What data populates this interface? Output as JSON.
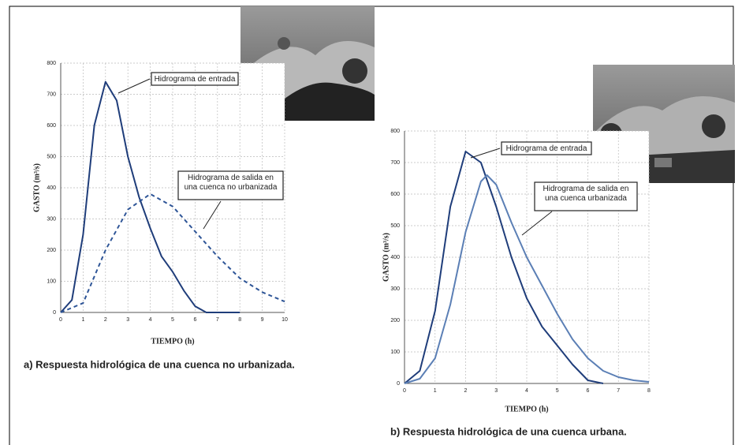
{
  "chart_data": [
    {
      "type": "line",
      "caption": "a) Respuesta hidrológica de una cuenca no urbanizada.",
      "x_label": "TIEMPO (h)",
      "y_label": "GASTO (m³/s)",
      "xlim": [
        0,
        10
      ],
      "xticks": [
        0,
        1,
        2,
        3,
        4,
        5,
        6,
        7,
        8,
        9,
        10
      ],
      "ylim": [
        0,
        800
      ],
      "yticks": [
        0,
        100,
        200,
        300,
        400,
        500,
        600,
        700,
        800
      ],
      "grid": true,
      "series": [
        {
          "color": "#1f3d7a",
          "dashed": false,
          "x": [
            0,
            0.5,
            1,
            1.5,
            2,
            2.5,
            3,
            3.5,
            4,
            4.5,
            5,
            5.5,
            6,
            6.5,
            7,
            8
          ],
          "values": [
            0,
            40,
            250,
            600,
            740,
            680,
            500,
            370,
            270,
            180,
            130,
            70,
            20,
            0,
            0,
            0
          ]
        },
        {
          "color": "#2e5597",
          "dashed": true,
          "x": [
            0,
            1,
            2,
            3,
            4,
            5,
            6,
            7,
            8,
            9,
            10
          ],
          "values": [
            0,
            30,
            200,
            330,
            380,
            340,
            260,
            180,
            110,
            65,
            35
          ]
        }
      ],
      "annotations": [
        {
          "lines": [
            "Hidrograma de entrada"
          ]
        },
        {
          "lines": [
            "Hidrograma de salida en",
            "una cuenca no urbanizada"
          ]
        }
      ]
    },
    {
      "type": "line",
      "caption": "b) Respuesta hidrológica de una cuenca urbana.",
      "x_label": "TIEMPO (h)",
      "y_label": "GASTO (m³/s)",
      "xlim": [
        0,
        8
      ],
      "xticks": [
        0,
        1,
        2,
        3,
        4,
        5,
        6,
        7,
        8
      ],
      "ylim": [
        0,
        800
      ],
      "yticks": [
        0,
        100,
        200,
        300,
        400,
        500,
        600,
        700,
        800
      ],
      "grid": true,
      "series": [
        {
          "color": "#1f3d7a",
          "dashed": false,
          "x": [
            0,
            0.5,
            1,
            1.5,
            2,
            2.5,
            3,
            3.5,
            4,
            4.5,
            5,
            5.5,
            6,
            6.5
          ],
          "values": [
            0,
            40,
            230,
            560,
            735,
            700,
            560,
            400,
            270,
            180,
            120,
            60,
            10,
            0
          ]
        },
        {
          "color": "#5b7fb5",
          "dashed": false,
          "x": [
            0,
            0.5,
            1,
            1.5,
            2,
            2.5,
            2.7,
            3,
            3.5,
            4,
            4.5,
            5,
            5.5,
            6,
            6.5,
            7,
            7.5,
            8
          ],
          "values": [
            0,
            15,
            80,
            250,
            480,
            640,
            660,
            630,
            510,
            400,
            310,
            220,
            140,
            80,
            40,
            20,
            10,
            5
          ]
        }
      ],
      "annotations": [
        {
          "lines": [
            "Hidrograma de entrada"
          ]
        },
        {
          "lines": [
            "Hidrograma de salida en",
            "una cuenca urbanizada"
          ]
        }
      ]
    }
  ]
}
